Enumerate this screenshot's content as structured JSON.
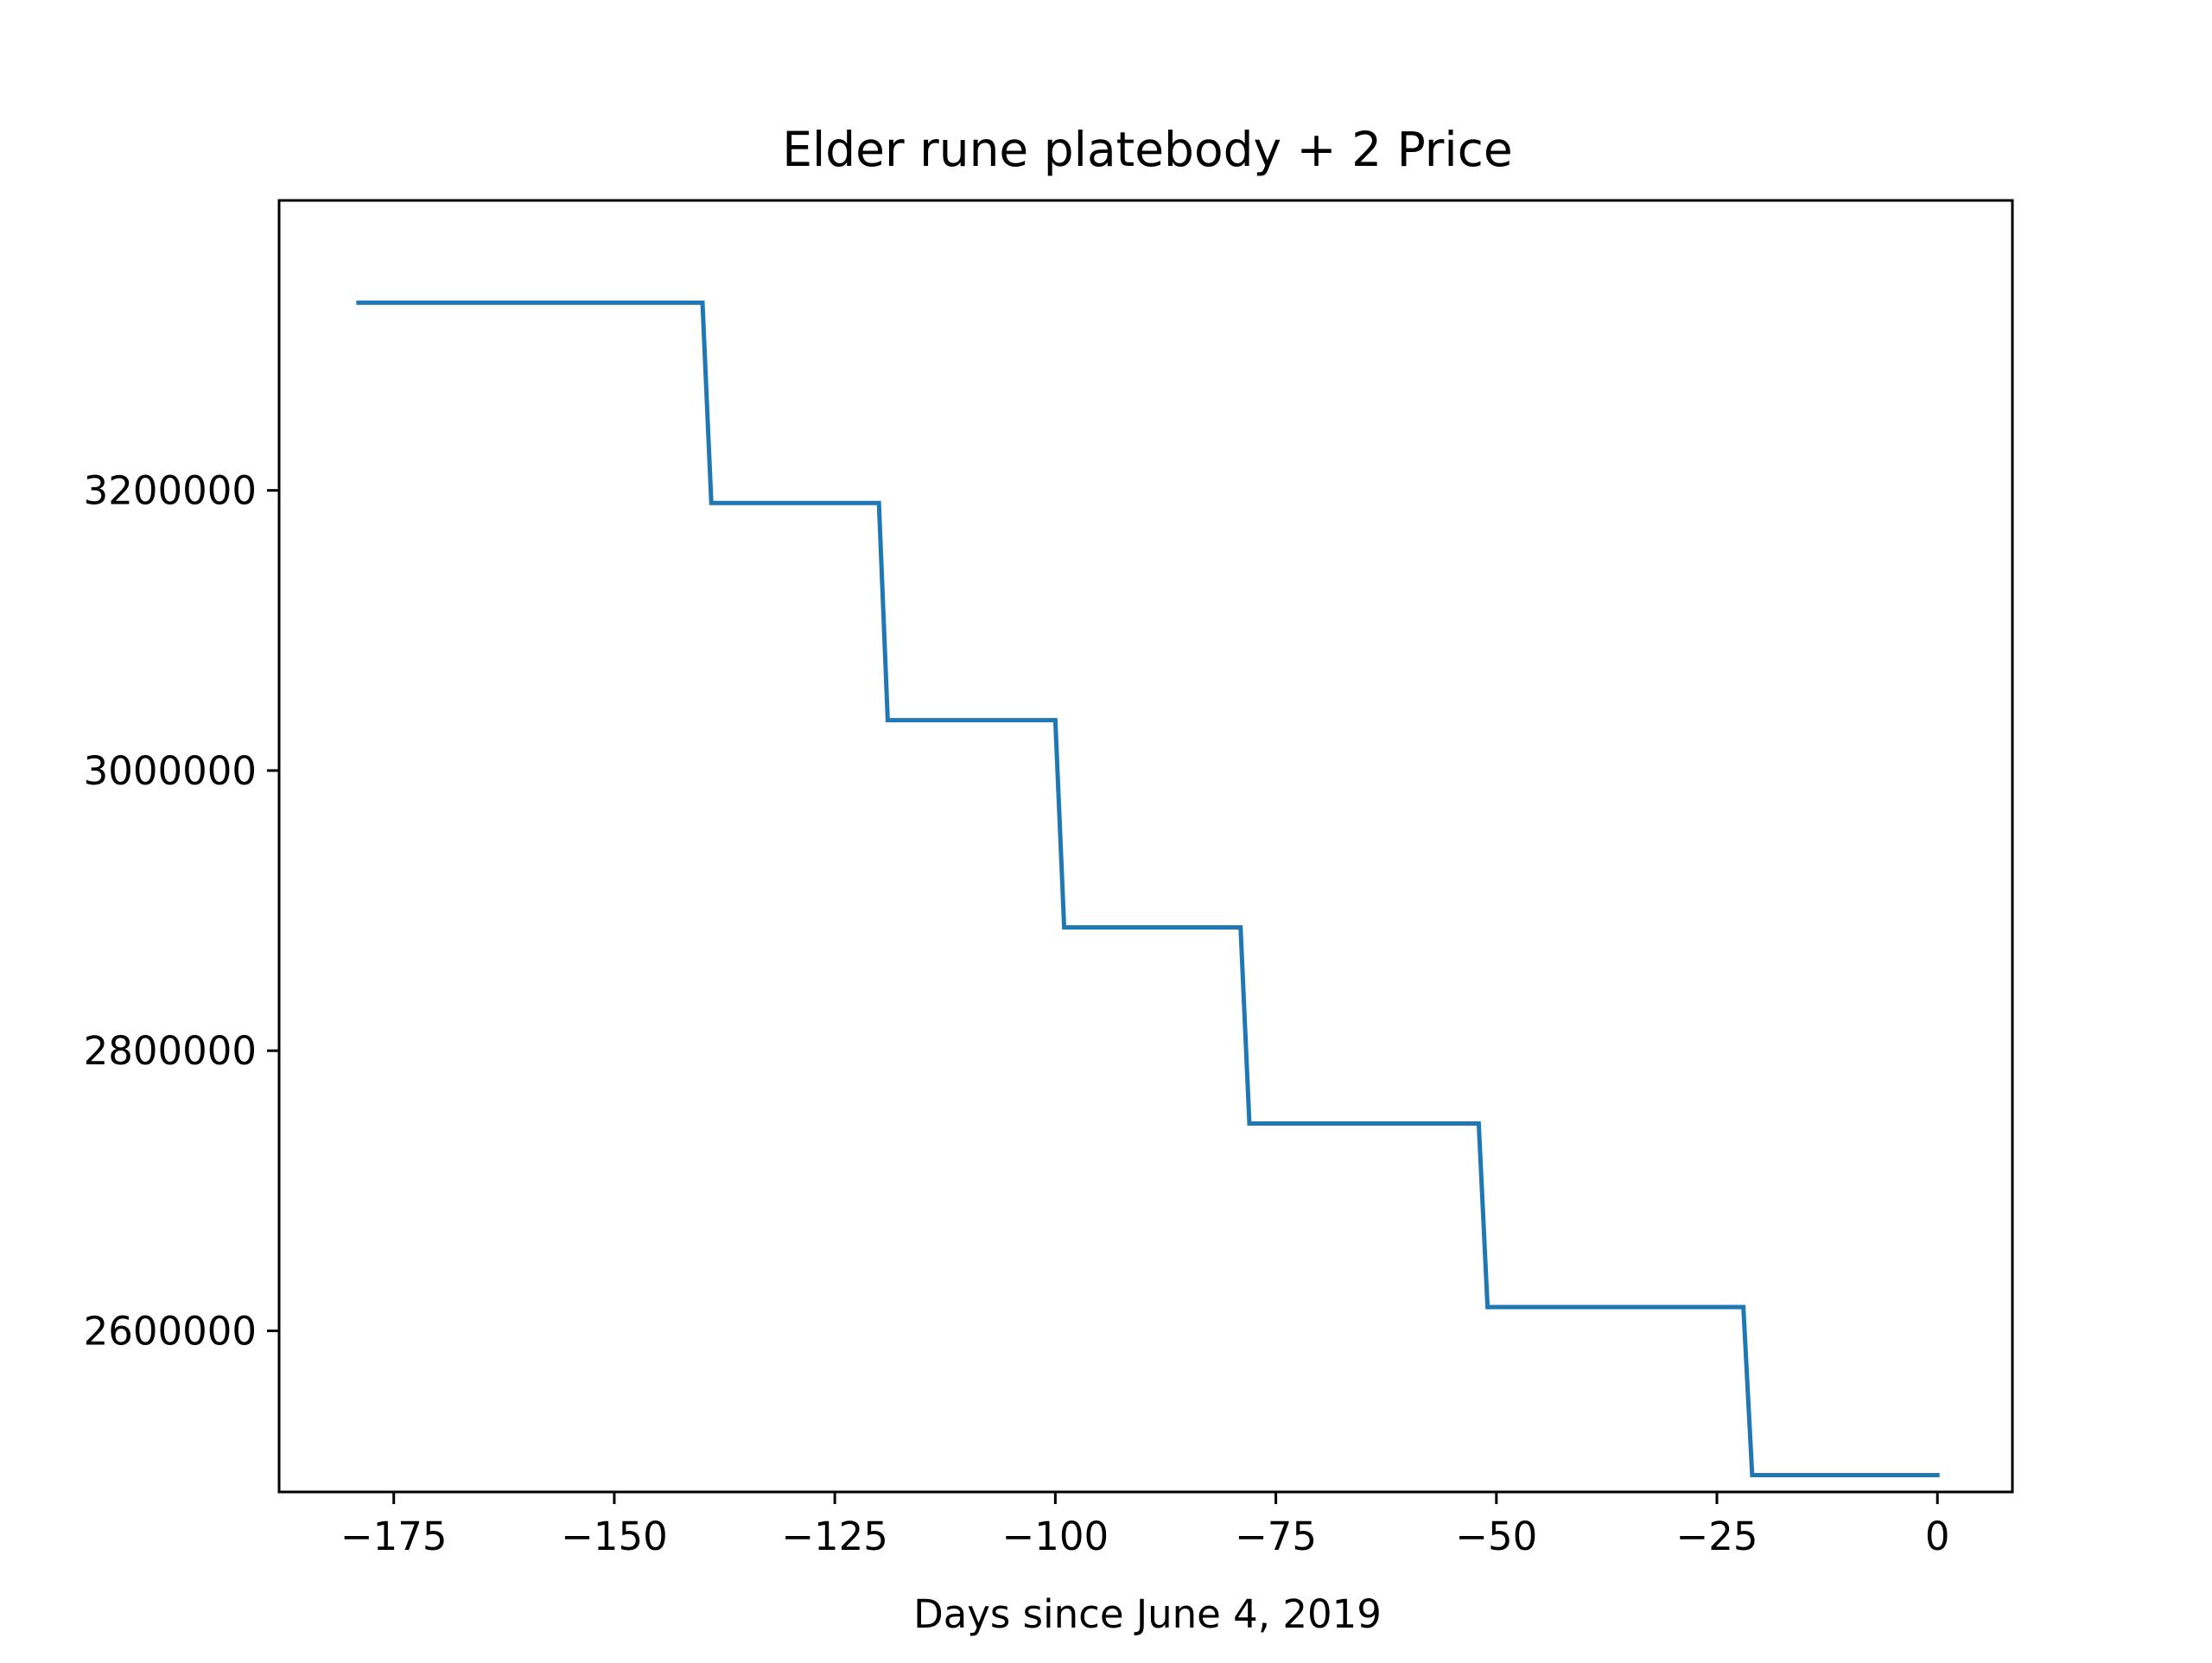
{
  "chart_data": {
    "type": "line",
    "title": "Elder rune platebody + 2 Price",
    "xlabel": "Days since June 4, 2019",
    "ylabel": "",
    "xlim": [
      -188,
      8.5
    ],
    "ylim": [
      2485000,
      3407000
    ],
    "x_ticks": [
      -175,
      -150,
      -125,
      -100,
      -75,
      -50,
      -25,
      0
    ],
    "x_tick_labels": [
      "−175",
      "−150",
      "−125",
      "−100",
      "−75",
      "−50",
      "−25",
      "0"
    ],
    "y_ticks": [
      2600000,
      2800000,
      3000000,
      3200000
    ],
    "y_tick_labels": [
      "2600000",
      "2800000",
      "3000000",
      "3200000"
    ],
    "grid": false,
    "legend": "none",
    "series": [
      {
        "color": "#1f77b4",
        "x": [
          -179,
          -140,
          -139,
          -120,
          -119,
          -100,
          -99,
          -79,
          -78,
          -52,
          -51,
          -22,
          -21,
          0
        ],
        "y": [
          3334000,
          3334000,
          3191000,
          3191000,
          3036000,
          3036000,
          2888000,
          2888000,
          2748000,
          2748000,
          2617000,
          2617000,
          2497000,
          2497000
        ]
      }
    ]
  }
}
